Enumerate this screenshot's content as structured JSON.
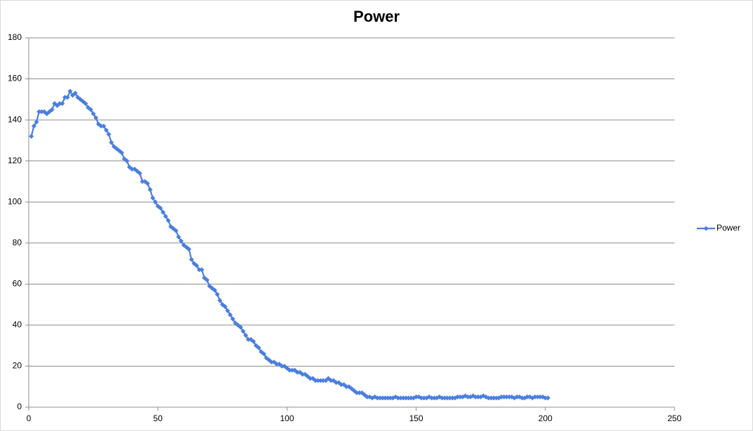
{
  "chart_data": {
    "type": "line",
    "title": "Power",
    "x": [
      1,
      2,
      3,
      4,
      5,
      6,
      7,
      8,
      9,
      10,
      11,
      12,
      13,
      14,
      15,
      16,
      17,
      18,
      19,
      20,
      21,
      22,
      23,
      24,
      25,
      26,
      27,
      28,
      29,
      30,
      31,
      32,
      33,
      34,
      35,
      36,
      37,
      38,
      39,
      40,
      41,
      42,
      43,
      44,
      45,
      46,
      47,
      48,
      49,
      50,
      51,
      52,
      53,
      54,
      55,
      56,
      57,
      58,
      59,
      60,
      61,
      62,
      63,
      64,
      65,
      66,
      67,
      68,
      69,
      70,
      71,
      72,
      73,
      74,
      75,
      76,
      77,
      78,
      79,
      80,
      81,
      82,
      83,
      84,
      85,
      86,
      87,
      88,
      89,
      90,
      91,
      92,
      93,
      94,
      95,
      96,
      97,
      98,
      99,
      100,
      101,
      102,
      103,
      104,
      105,
      106,
      107,
      108,
      109,
      110,
      111,
      112,
      113,
      114,
      115,
      116,
      117,
      118,
      119,
      120,
      121,
      122,
      123,
      124,
      125,
      126,
      127,
      128,
      129,
      130,
      131,
      132,
      133,
      134,
      135,
      136,
      137,
      138,
      139,
      140,
      141,
      142,
      143,
      144,
      145,
      146,
      147,
      148,
      149,
      150,
      151,
      152,
      153,
      154,
      155,
      156,
      157,
      158,
      159,
      160,
      161,
      162,
      163,
      164,
      165,
      166,
      167,
      168,
      169,
      170,
      171,
      172,
      173,
      174,
      175,
      176,
      177,
      178,
      179,
      180,
      181,
      182,
      183,
      184,
      185,
      186,
      187,
      188,
      189,
      190,
      191,
      192,
      193,
      194,
      195,
      196,
      197,
      198,
      199,
      200,
      201
    ],
    "series": [
      {
        "name": "Power",
        "color": "#4a7fe0",
        "values": [
          132,
          137,
          139,
          144,
          144,
          144,
          143,
          144,
          145,
          148,
          147,
          148,
          148,
          151,
          151,
          154,
          152,
          153,
          151,
          150,
          149,
          148,
          146,
          145,
          143,
          141,
          138,
          137,
          137,
          135,
          133,
          129,
          127,
          126,
          125,
          124,
          121,
          120,
          117,
          116,
          116,
          115,
          114,
          110,
          110,
          109,
          106,
          102,
          100,
          98,
          97,
          95,
          93,
          91,
          88,
          87,
          86,
          83,
          81,
          79,
          78,
          77,
          72,
          70,
          69,
          67,
          67,
          63,
          62,
          59,
          58,
          57,
          55,
          52,
          50,
          49,
          47,
          45,
          43,
          41,
          40,
          39,
          37,
          35,
          33,
          33,
          32,
          30,
          29,
          27,
          26,
          24,
          23,
          22,
          22,
          21,
          21,
          20,
          20,
          19,
          18,
          18,
          18,
          17,
          17,
          16,
          16,
          15,
          14,
          14,
          13,
          13,
          13,
          13,
          13,
          14,
          13,
          13,
          12,
          12,
          11,
          11,
          10,
          10,
          9,
          8,
          7,
          7,
          7,
          6,
          5,
          5,
          4.5,
          5,
          4.5,
          4.5,
          4.5,
          4.5,
          4.5,
          4.5,
          4.5,
          5,
          4.5,
          4.5,
          4.5,
          4.5,
          4.5,
          4.5,
          4.5,
          5,
          5,
          4.5,
          4.5,
          4.5,
          5,
          4.5,
          4.5,
          4.5,
          5,
          4.5,
          4.5,
          4.5,
          4.5,
          4.5,
          4.5,
          5,
          5,
          5,
          5.5,
          5,
          5,
          5.5,
          5,
          5,
          5,
          5.5,
          5,
          4.5,
          4.5,
          4.5,
          4.5,
          4.5,
          5,
          5,
          5,
          5,
          5,
          4.5,
          5,
          5,
          4.5,
          4.5,
          5,
          5,
          4.5,
          5,
          5,
          5,
          5,
          4.5,
          4.5
        ]
      }
    ],
    "xlim": [
      0,
      250
    ],
    "xticks": [
      0,
      50,
      100,
      150,
      200,
      250
    ],
    "ylim": [
      0,
      180
    ],
    "yticks": [
      0,
      20,
      40,
      60,
      80,
      100,
      120,
      140,
      160,
      180
    ],
    "grid": true,
    "legend": "right"
  }
}
